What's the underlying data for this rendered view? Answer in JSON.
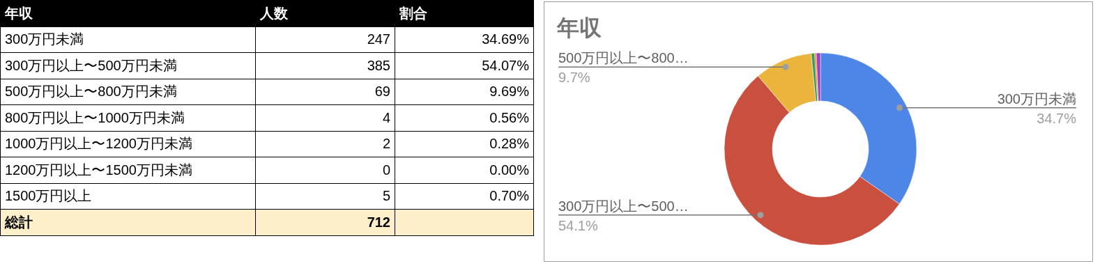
{
  "chart_data": [
    {
      "type": "other",
      "categories": [
        "300万円未満",
        "300万円以上〜500万円未満",
        "500万円以上〜800万円未満",
        "800万円以上〜1000万円未満",
        "1000万円以上〜1200万円未満",
        "1200万円以上〜1500万円未満",
        "1500万円以上"
      ],
      "series": [
        {
          "name": "人数",
          "values": [
            247,
            385,
            69,
            4,
            2,
            0,
            5
          ]
        },
        {
          "name": "割合",
          "values": [
            34.69,
            54.07,
            9.69,
            0.56,
            0.28,
            0.0,
            0.7
          ],
          "value_labels": [
            "34.69%",
            "54.07%",
            "9.69%",
            "0.56%",
            "0.28%",
            "0.00%",
            "0.70%"
          ]
        }
      ],
      "data_labels": true,
      "annotations": [
        "年収",
        "総計",
        "712"
      ]
    },
    {
      "type": "donut",
      "title": "年収",
      "categories": [
        "300万円未満",
        "300万円以上〜500…",
        "500万円以上〜800…",
        null,
        null,
        null,
        null
      ],
      "values": [
        34.69,
        54.07,
        9.69,
        0.56,
        0.28,
        0,
        0.7
      ],
      "colors": [
        "#4e86e8",
        "#c94f3f",
        "#ebb43d",
        "#3e9a58",
        "#ff6d01",
        "#46bdc6",
        "#9b41c5"
      ],
      "value_labels": [
        "34.7%",
        "54.1%",
        "9.7%",
        null,
        null,
        null,
        null
      ]
    }
  ]
}
